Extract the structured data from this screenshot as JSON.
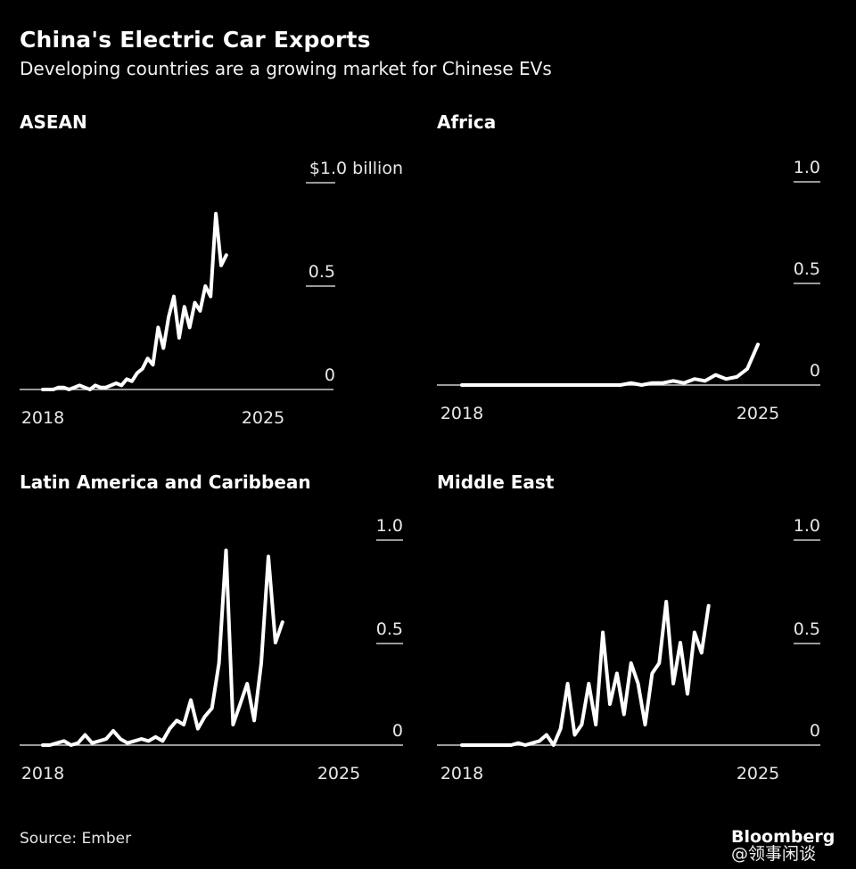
{
  "title": "China's Electric Car Exports",
  "subtitle": "Developing countries are a growing market for Chinese EVs",
  "source": "Source: Ember",
  "brand": "Bloomberg",
  "watermark": "@领事闲谈",
  "colors": {
    "background": "#000000",
    "line": "#ffffff",
    "axis": "#cccccc",
    "text": "#e8e8e8"
  },
  "chart_data": [
    {
      "type": "line",
      "title": "ASEAN",
      "unit_label": "$1.0 billion",
      "x_ticks": [
        "2018",
        "2025"
      ],
      "y_ticks": [
        "1.0",
        "0.5",
        "0"
      ],
      "ylim": [
        0,
        1.0
      ],
      "xlim": [
        2018,
        2026.1
      ],
      "x_start": 2018,
      "step_months": 2,
      "values": [
        0.0,
        0.0,
        0.0,
        0.01,
        0.01,
        0.0,
        0.01,
        0.02,
        0.01,
        0.0,
        0.02,
        0.01,
        0.01,
        0.02,
        0.03,
        0.02,
        0.05,
        0.04,
        0.08,
        0.1,
        0.15,
        0.12,
        0.3,
        0.2,
        0.35,
        0.45,
        0.25,
        0.4,
        0.3,
        0.42,
        0.38,
        0.5,
        0.45,
        0.85,
        0.6,
        0.65
      ]
    },
    {
      "type": "line",
      "title": "Africa",
      "unit_label": "1.0",
      "x_ticks": [
        "2018",
        "2025"
      ],
      "y_ticks": [
        "1.0",
        "0.5",
        "0"
      ],
      "ylim": [
        0,
        1.0
      ],
      "xlim": [
        2017.9,
        2026.1
      ],
      "x_start": 2018,
      "step_months": 3,
      "values": [
        0.0,
        0.0,
        0.0,
        0.0,
        0.0,
        0.0,
        0.0,
        0.0,
        0.0,
        0.0,
        0.0,
        0.0,
        0.0,
        0.0,
        0.0,
        0.0,
        0.01,
        0.0,
        0.01,
        0.01,
        0.02,
        0.01,
        0.03,
        0.02,
        0.05,
        0.03,
        0.04,
        0.08,
        0.2
      ]
    },
    {
      "type": "line",
      "title": "Latin America and Caribbean",
      "unit_label": "1.0",
      "x_ticks": [
        "2018",
        "2025"
      ],
      "y_ticks": [
        "1.0",
        "0.5",
        "0"
      ],
      "ylim": [
        0,
        1.0
      ],
      "xlim": [
        2017.6,
        2026.1
      ],
      "x_start": 2018,
      "step_months": 2,
      "values": [
        0.0,
        0.0,
        0.01,
        0.02,
        0.0,
        0.01,
        0.05,
        0.01,
        0.02,
        0.03,
        0.07,
        0.03,
        0.01,
        0.02,
        0.03,
        0.02,
        0.04,
        0.02,
        0.08,
        0.12,
        0.1,
        0.22,
        0.08,
        0.14,
        0.18,
        0.4,
        0.95,
        0.1,
        0.2,
        0.3,
        0.12,
        0.4,
        0.92,
        0.5,
        0.6
      ]
    },
    {
      "type": "line",
      "title": "Middle East",
      "unit_label": "1.0",
      "x_ticks": [
        "2018",
        "2025"
      ],
      "y_ticks": [
        "1.0",
        "0.5",
        "0"
      ],
      "ylim": [
        0,
        1.0
      ],
      "xlim": [
        2017.75,
        2026.1
      ],
      "x_start": 2018,
      "step_months": 2,
      "values": [
        0.0,
        0.0,
        0.0,
        0.0,
        0.0,
        0.0,
        0.0,
        0.0,
        0.01,
        0.0,
        0.01,
        0.02,
        0.05,
        0.0,
        0.08,
        0.3,
        0.05,
        0.1,
        0.3,
        0.1,
        0.55,
        0.2,
        0.35,
        0.15,
        0.4,
        0.3,
        0.1,
        0.35,
        0.4,
        0.7,
        0.3,
        0.5,
        0.25,
        0.55,
        0.45,
        0.68
      ]
    }
  ]
}
